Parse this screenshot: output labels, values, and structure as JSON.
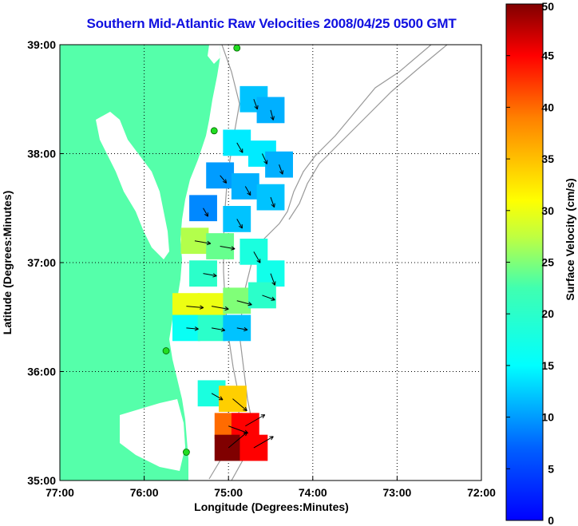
{
  "chart_data": {
    "type": "heatmap",
    "title": "Southern Mid-Atlantic Raw Velocities 2008/04/25 0500 GMT",
    "xlabel": "Longitude (Degrees:Minutes)",
    "ylabel": "Latitude (Degrees:Minutes)",
    "colorbar_label": "Surface Velocity (cm/s)",
    "x_ticks": [
      {
        "value": -77,
        "label": "77:00"
      },
      {
        "value": -76,
        "label": "76:00"
      },
      {
        "value": -75,
        "label": "75:00"
      },
      {
        "value": -74,
        "label": "74:00"
      },
      {
        "value": -73,
        "label": "73:00"
      },
      {
        "value": -72,
        "label": "72:00"
      }
    ],
    "y_ticks": [
      {
        "value": 35,
        "label": "35:00"
      },
      {
        "value": 36,
        "label": "36:00"
      },
      {
        "value": 37,
        "label": "37:00"
      },
      {
        "value": 38,
        "label": "38:00"
      },
      {
        "value": 39,
        "label": "39:00"
      }
    ],
    "colorbar_ticks": [
      "0",
      "5",
      "10",
      "15",
      "20",
      "25",
      "30",
      "35",
      "40",
      "45",
      "50"
    ],
    "xlim": [
      -77,
      -72
    ],
    "ylim": [
      35,
      39
    ],
    "clim": [
      0,
      50
    ],
    "grid": true,
    "colormap": "jet",
    "land_color": "#55ffaa",
    "title_color": "#1010e0",
    "station_color": "#22dd22",
    "stations": [
      {
        "lon": -74.9,
        "lat": 38.97
      },
      {
        "lon": -75.17,
        "lat": 38.21
      },
      {
        "lon": -75.74,
        "lat": 36.19
      },
      {
        "lon": -75.5,
        "lat": 35.26
      }
    ],
    "velocity_cells": [
      {
        "lon": -74.7,
        "lat": 38.5,
        "speed": 12,
        "dir": 160
      },
      {
        "lon": -74.5,
        "lat": 38.4,
        "speed": 11,
        "dir": 165
      },
      {
        "lon": -74.9,
        "lat": 38.1,
        "speed": 14,
        "dir": 150
      },
      {
        "lon": -74.6,
        "lat": 38.0,
        "speed": 14,
        "dir": 155
      },
      {
        "lon": -74.4,
        "lat": 37.9,
        "speed": 11,
        "dir": 160
      },
      {
        "lon": -75.1,
        "lat": 37.8,
        "speed": 10,
        "dir": 140
      },
      {
        "lon": -74.8,
        "lat": 37.7,
        "speed": 11,
        "dir": 150
      },
      {
        "lon": -74.5,
        "lat": 37.6,
        "speed": 12,
        "dir": 160
      },
      {
        "lon": -75.3,
        "lat": 37.5,
        "speed": 9,
        "dir": 150
      },
      {
        "lon": -74.9,
        "lat": 37.4,
        "speed": 12,
        "dir": 150
      },
      {
        "lon": -75.4,
        "lat": 37.2,
        "speed": 27,
        "dir": 100
      },
      {
        "lon": -75.1,
        "lat": 37.15,
        "speed": 24,
        "dir": 100
      },
      {
        "lon": -74.7,
        "lat": 37.1,
        "speed": 18,
        "dir": 150
      },
      {
        "lon": -74.5,
        "lat": 36.9,
        "speed": 17,
        "dir": 160
      },
      {
        "lon": -75.3,
        "lat": 36.9,
        "speed": 20,
        "dir": 100
      },
      {
        "lon": -75.5,
        "lat": 36.6,
        "speed": 30,
        "dir": 95
      },
      {
        "lon": -75.2,
        "lat": 36.6,
        "speed": 30,
        "dir": 100
      },
      {
        "lon": -74.9,
        "lat": 36.65,
        "speed": 25,
        "dir": 105
      },
      {
        "lon": -74.6,
        "lat": 36.7,
        "speed": 20,
        "dir": 110
      },
      {
        "lon": -75.5,
        "lat": 36.4,
        "speed": 16,
        "dir": 95
      },
      {
        "lon": -75.2,
        "lat": 36.4,
        "speed": 20,
        "dir": 100
      },
      {
        "lon": -74.9,
        "lat": 36.4,
        "speed": 12,
        "dir": 100
      },
      {
        "lon": -75.2,
        "lat": 35.8,
        "speed": 18,
        "dir": 120
      },
      {
        "lon": -74.95,
        "lat": 35.75,
        "speed": 34,
        "dir": 130
      },
      {
        "lon": -75.0,
        "lat": 35.5,
        "speed": 40,
        "dir": 110
      },
      {
        "lon": -74.8,
        "lat": 35.5,
        "speed": 45,
        "dir": 60
      },
      {
        "lon": -75.0,
        "lat": 35.3,
        "speed": 50,
        "dir": 50
      },
      {
        "lon": -74.7,
        "lat": 35.3,
        "speed": 45,
        "dir": 60
      }
    ]
  }
}
